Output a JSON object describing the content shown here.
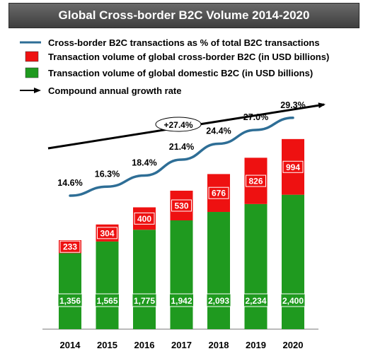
{
  "chart_data": {
    "type": "bar",
    "title": "Global Cross-border B2C Volume 2014-2020",
    "categories": [
      "2014",
      "2015",
      "2016",
      "2017",
      "2018",
      "2019",
      "2020"
    ],
    "series": [
      {
        "name": "Transaction volume of global domestic B2C (in USD billions)",
        "color": "#1f9a1f",
        "values": [
          1356,
          1565,
          1775,
          1942,
          2093,
          2234,
          2400
        ],
        "labels": [
          "1,356",
          "1,565",
          "1,775",
          "1,942",
          "2,093",
          "2,234",
          "2,400"
        ]
      },
      {
        "name": "Transaction volume of global cross-border B2C (in USD billions)",
        "color": "#ee1111",
        "values": [
          233,
          304,
          400,
          530,
          676,
          826,
          994
        ],
        "labels": [
          "233",
          "304",
          "400",
          "530",
          "676",
          "826",
          "994"
        ]
      }
    ],
    "line": {
      "name": "Cross-border B2C transactions as % of total B2C transactions",
      "color": "#2e6e96",
      "values": [
        14.6,
        16.3,
        18.4,
        21.4,
        24.4,
        27.0,
        29.3
      ],
      "labels": [
        "14.6%",
        "16.3%",
        "18.4%",
        "21.4%",
        "24.4%",
        "27.0%",
        "29.3%"
      ]
    },
    "cagr": {
      "name": "Compound annual growth rate",
      "label": "+27.4%"
    },
    "legend_position": "top"
  }
}
